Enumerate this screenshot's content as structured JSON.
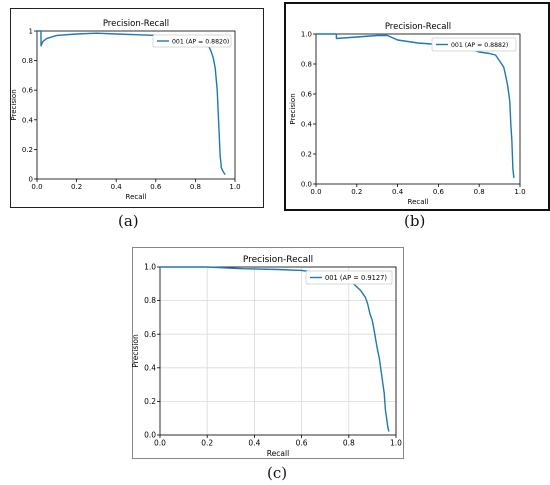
{
  "chart_data": [
    {
      "type": "line",
      "title": "Precision-Recall",
      "xlabel": "Recall",
      "ylabel": "Precision",
      "xlim": [
        0,
        1
      ],
      "ylim": [
        0,
        1
      ],
      "grid": false,
      "legend": "top-right",
      "xticks": [
        "0.0",
        "0.2",
        "0.4",
        "0.6",
        "0.8",
        "1.0"
      ],
      "yticks": [
        "0",
        "0.2",
        "0.4",
        "0.6",
        "0.8",
        "1"
      ],
      "series": [
        {
          "name": "001 (AP = 0.8820)",
          "color": "#1f77b4",
          "x": [
            0.0,
            0.02,
            0.02,
            0.03,
            0.05,
            0.1,
            0.2,
            0.3,
            0.4,
            0.5,
            0.6,
            0.65,
            0.7,
            0.75,
            0.8,
            0.84,
            0.87,
            0.88,
            0.89,
            0.9,
            0.91,
            0.915,
            0.92,
            0.925,
            0.93,
            0.93,
            0.94,
            0.95
          ],
          "y": [
            1.0,
            1.0,
            0.9,
            0.93,
            0.95,
            0.97,
            0.98,
            0.985,
            0.98,
            0.975,
            0.97,
            0.96,
            0.95,
            0.94,
            0.93,
            0.91,
            0.89,
            0.86,
            0.82,
            0.75,
            0.6,
            0.45,
            0.3,
            0.15,
            0.1,
            0.08,
            0.05,
            0.03
          ]
        }
      ]
    },
    {
      "type": "line",
      "title": "Precision-Recall",
      "xlabel": "Recall",
      "ylabel": "Precision",
      "xlim": [
        0,
        1
      ],
      "ylim": [
        0,
        1
      ],
      "grid": false,
      "legend": "top-right",
      "xticks": [
        "0.0",
        "0.2",
        "0.4",
        "0.6",
        "0.8",
        "1.0"
      ],
      "yticks": [
        "0.0",
        "0.2",
        "0.4",
        "0.6",
        "0.8",
        "1.0"
      ],
      "series": [
        {
          "name": "001 (AP = 0.8882)",
          "color": "#1f77b4",
          "x": [
            0.0,
            0.1,
            0.1,
            0.2,
            0.3,
            0.35,
            0.4,
            0.45,
            0.5,
            0.6,
            0.7,
            0.75,
            0.8,
            0.85,
            0.88,
            0.9,
            0.92,
            0.93,
            0.94,
            0.95,
            0.955,
            0.96,
            0.965,
            0.97
          ],
          "y": [
            1.0,
            1.0,
            0.97,
            0.98,
            0.99,
            0.99,
            0.96,
            0.95,
            0.94,
            0.93,
            0.92,
            0.9,
            0.88,
            0.87,
            0.86,
            0.82,
            0.78,
            0.72,
            0.65,
            0.55,
            0.4,
            0.3,
            0.1,
            0.04
          ]
        }
      ]
    },
    {
      "type": "line",
      "title": "Precision-Recall",
      "xlabel": "Recall",
      "ylabel": "Precision",
      "xlim": [
        0,
        1
      ],
      "ylim": [
        0,
        1
      ],
      "grid": true,
      "legend": "top-right",
      "xticks": [
        "0.0",
        "0.2",
        "0.4",
        "0.6",
        "0.8",
        "1.0"
      ],
      "yticks": [
        "0.0",
        "0.2",
        "0.4",
        "0.6",
        "0.8",
        "1.0"
      ],
      "series": [
        {
          "name": "001 (AP = 0.9127)",
          "color": "#1f77b4",
          "x": [
            0.0,
            0.2,
            0.35,
            0.5,
            0.6,
            0.65,
            0.7,
            0.75,
            0.8,
            0.82,
            0.85,
            0.87,
            0.88,
            0.89,
            0.9,
            0.91,
            0.92,
            0.93,
            0.94,
            0.95,
            0.955,
            0.96,
            0.965,
            0.97
          ],
          "y": [
            1.0,
            1.0,
            0.99,
            0.985,
            0.98,
            0.97,
            0.96,
            0.94,
            0.92,
            0.9,
            0.86,
            0.82,
            0.78,
            0.72,
            0.68,
            0.6,
            0.52,
            0.45,
            0.35,
            0.25,
            0.15,
            0.1,
            0.05,
            0.02
          ]
        }
      ]
    }
  ],
  "captions": [
    "(a)",
    "(b)",
    "(c)"
  ]
}
